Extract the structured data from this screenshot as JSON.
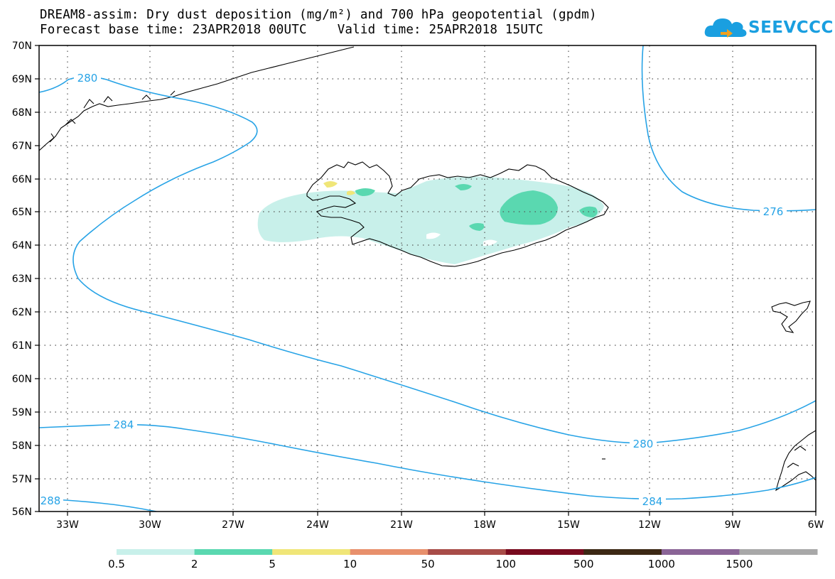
{
  "title_line1": "DREAM8-assim: Dry dust deposition (mg/m²) and 700 hPa geopotential (gpdm)",
  "title_line2": "Forecast base time: 23APR2018 00UTC    Valid time: 25APR2018 15UTC",
  "logo": {
    "text": "SEEVCCC",
    "icon": "cloud-arrow-icon",
    "color": "#1a9fe0"
  },
  "map": {
    "lon_range": [
      -34.5,
      -6
    ],
    "lat_range": [
      56,
      70
    ],
    "grid": true,
    "lat_labels": [
      "70N",
      "69N",
      "68N",
      "67N",
      "66N",
      "65N",
      "64N",
      "63N",
      "62N",
      "61N",
      "60N",
      "59N",
      "58N",
      "57N",
      "56N"
    ],
    "lon_labels": [
      "33W",
      "30W",
      "27W",
      "24W",
      "21W",
      "18W",
      "15W",
      "12W",
      "9W",
      "6W"
    ],
    "contour_color": "#27a3e6",
    "contour_labels": [
      "280",
      "276",
      "284",
      "280",
      "288",
      "284"
    ]
  },
  "colorbar": {
    "colors": [
      "#c8f0ea",
      "#5ad8b0",
      "#f0e678",
      "#e8906c",
      "#a84c48",
      "#780a1e",
      "#3c2814",
      "#8a6496",
      "#a8a8a8"
    ],
    "labels": [
      "0.5",
      "2",
      "5",
      "10",
      "50",
      "100",
      "500",
      "1000",
      "1500"
    ]
  }
}
